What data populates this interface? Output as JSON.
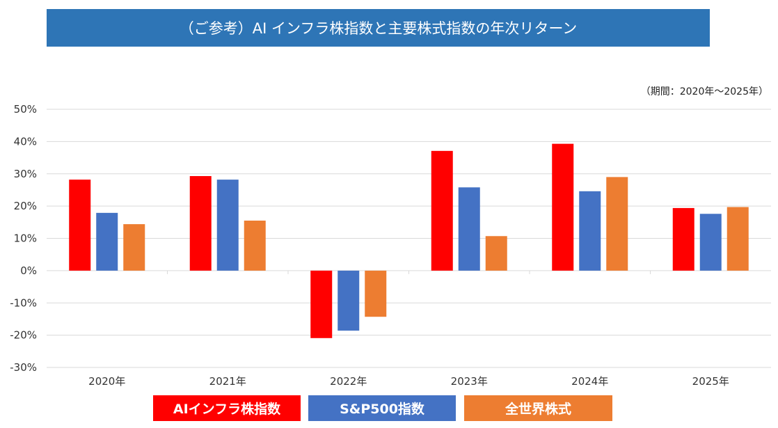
{
  "title": "（ご参考）AI インフラ株指数と主要株式指数の年次リターン",
  "period_note": "（期間：2020年～2025年）",
  "colors": {
    "title_bg": "#2e75b6",
    "ai": "#ff0000",
    "sp500": "#4472c4",
    "world": "#ed7d31"
  },
  "chart_data": {
    "type": "bar",
    "title": "（ご参考）AI インフラ株指数と主要株式指数の年次リターン",
    "subtitle": "（期間：2020年～2025年）",
    "categories": [
      "2020年",
      "2021年",
      "2022年",
      "2023年",
      "2024年",
      "2025年"
    ],
    "series": [
      {
        "name": "AIインフラ株指数",
        "color": "#ff0000",
        "values": [
          28.2,
          29.3,
          -20.9,
          37.1,
          39.3,
          19.4
        ]
      },
      {
        "name": "S&P500指数",
        "color": "#4472c4",
        "values": [
          17.9,
          28.2,
          -18.6,
          25.8,
          24.6,
          17.6
        ]
      },
      {
        "name": "全世界株式",
        "color": "#ed7d31",
        "values": [
          14.4,
          15.5,
          -14.3,
          10.7,
          29.0,
          19.7
        ]
      }
    ],
    "yticks": [
      "50%",
      "40%",
      "30%",
      "20%",
      "10%",
      "0%",
      "-10%",
      "-20%",
      "-30%"
    ],
    "ylim": [
      -30,
      50
    ],
    "grid": true,
    "legend_position": "bottom"
  }
}
